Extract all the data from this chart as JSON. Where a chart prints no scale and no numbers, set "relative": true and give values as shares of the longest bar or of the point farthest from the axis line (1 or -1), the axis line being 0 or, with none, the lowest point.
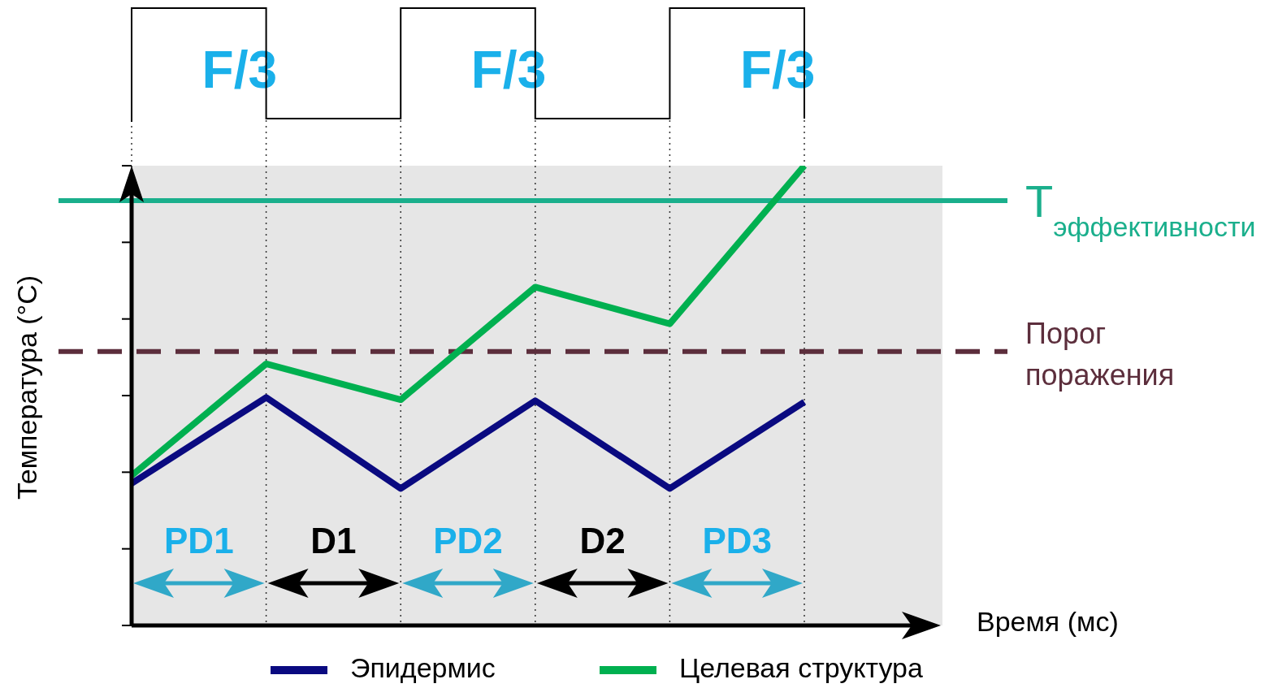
{
  "chart_data": {
    "type": "line",
    "relative": true,
    "xlabel": "Время (мс)",
    "ylabel": "Температура (°C)",
    "categories": [
      null,
      null,
      null,
      null,
      null,
      null
    ],
    "series": [
      {
        "name": "Эпидермис",
        "color": "#0a0a80",
        "values": [
          0.309,
          0.496,
          0.298,
          0.489,
          0.298,
          0.486
        ]
      },
      {
        "name": "Целевая структура",
        "color": "#00b050",
        "values": [
          0.326,
          0.569,
          0.491,
          0.736,
          0.656,
          1
        ]
      }
    ],
    "ref_lines": [
      {
        "axis": "y",
        "value": 0.924,
        "label": "T$_{эффективности}$",
        "color": "#1aaf8c",
        "line_style": "solid"
      },
      {
        "axis": "y",
        "value": 0.596,
        "label": "Порог поражения",
        "color": "#5c2e3c",
        "line_style": "dashed"
      }
    ],
    "annotations": [
      "F/3",
      "F/3",
      "F/3",
      "PD1",
      "D1",
      "PD2",
      "D2",
      "PD3"
    ],
    "grid": "x",
    "legend": "bottom",
    "marker": "none",
    "line_style": "solid"
  }
}
